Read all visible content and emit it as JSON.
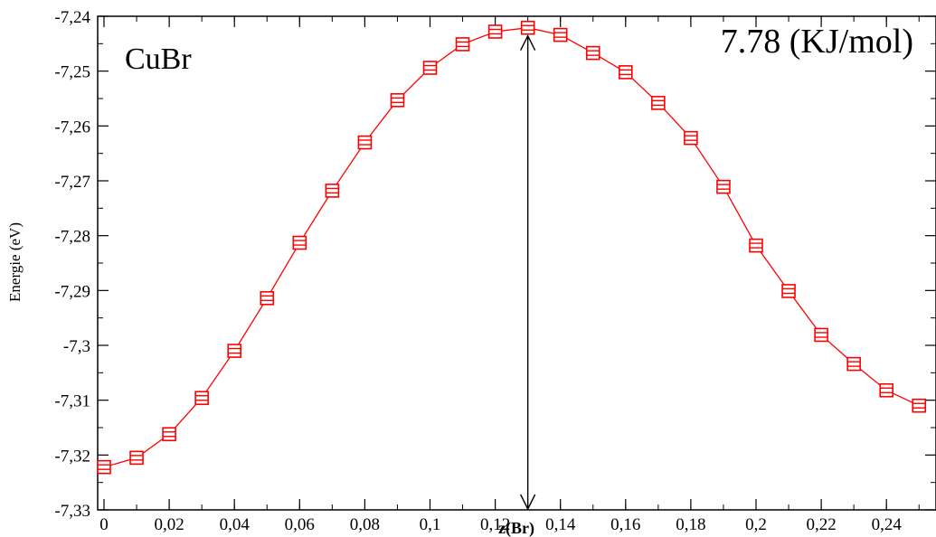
{
  "chart_data": {
    "type": "line",
    "title": "",
    "xlabel": "z(Br)",
    "ylabel": "Energie (eV)",
    "xlim": [
      0,
      0.25
    ],
    "ylim": [
      -7.33,
      -7.24
    ],
    "x_ticks": [
      {
        "value": 0,
        "label": "0"
      },
      {
        "value": 0.02,
        "label": "0,02"
      },
      {
        "value": 0.04,
        "label": "0,04"
      },
      {
        "value": 0.06,
        "label": "0,06"
      },
      {
        "value": 0.08,
        "label": "0,08"
      },
      {
        "value": 0.1,
        "label": "0,1"
      },
      {
        "value": 0.12,
        "label": "0,12"
      },
      {
        "value": 0.14,
        "label": "0,14"
      },
      {
        "value": 0.16,
        "label": "0,16"
      },
      {
        "value": 0.18,
        "label": "0,18"
      },
      {
        "value": 0.2,
        "label": "0,2"
      },
      {
        "value": 0.22,
        "label": "0,22"
      },
      {
        "value": 0.24,
        "label": "0,24"
      }
    ],
    "y_ticks": [
      {
        "value": -7.24,
        "label": "-7,24"
      },
      {
        "value": -7.25,
        "label": "-7,25"
      },
      {
        "value": -7.26,
        "label": "-7,26"
      },
      {
        "value": -7.27,
        "label": "-7,27"
      },
      {
        "value": -7.28,
        "label": "-7,28"
      },
      {
        "value": -7.29,
        "label": "-7,29"
      },
      {
        "value": -7.3,
        "label": "-7,3"
      },
      {
        "value": -7.31,
        "label": "-7,31"
      },
      {
        "value": -7.32,
        "label": "-7,32"
      },
      {
        "value": -7.33,
        "label": "-7,33"
      }
    ],
    "series": [
      {
        "color": "#ff0000",
        "marker": "square",
        "x": [
          0,
          0.01,
          0.02,
          0.03,
          0.04,
          0.05,
          0.06,
          0.07,
          0.08,
          0.09,
          0.1,
          0.11,
          0.12,
          0.13,
          0.14,
          0.15,
          0.16,
          0.17,
          0.18,
          0.19,
          0.2,
          0.21,
          0.22,
          0.23,
          0.24,
          0.25
        ],
        "y": [
          -7.3222,
          -7.3205,
          -7.3162,
          -7.3096,
          -7.301,
          -7.2914,
          -7.2813,
          -7.2718,
          -7.263,
          -7.2553,
          -7.2494,
          -7.2451,
          -7.2428,
          -7.2421,
          -7.2434,
          -7.2467,
          -7.2502,
          -7.2558,
          -7.2622,
          -7.2711,
          -7.2818,
          -7.2901,
          -7.2981,
          -7.3034,
          -7.3082,
          -7.311
        ]
      }
    ],
    "annotations": [
      {
        "text": "CuBr",
        "kind": "label"
      },
      {
        "text": "7.78 (KJ/mol)",
        "kind": "label"
      }
    ],
    "arrow": {
      "x": 0.13,
      "y_from": -7.33,
      "y_to": -7.2421
    },
    "grid": false,
    "legend": "none",
    "colors": {
      "series": "#ff0000",
      "axes": "#000000",
      "arrow": "#000000"
    }
  }
}
